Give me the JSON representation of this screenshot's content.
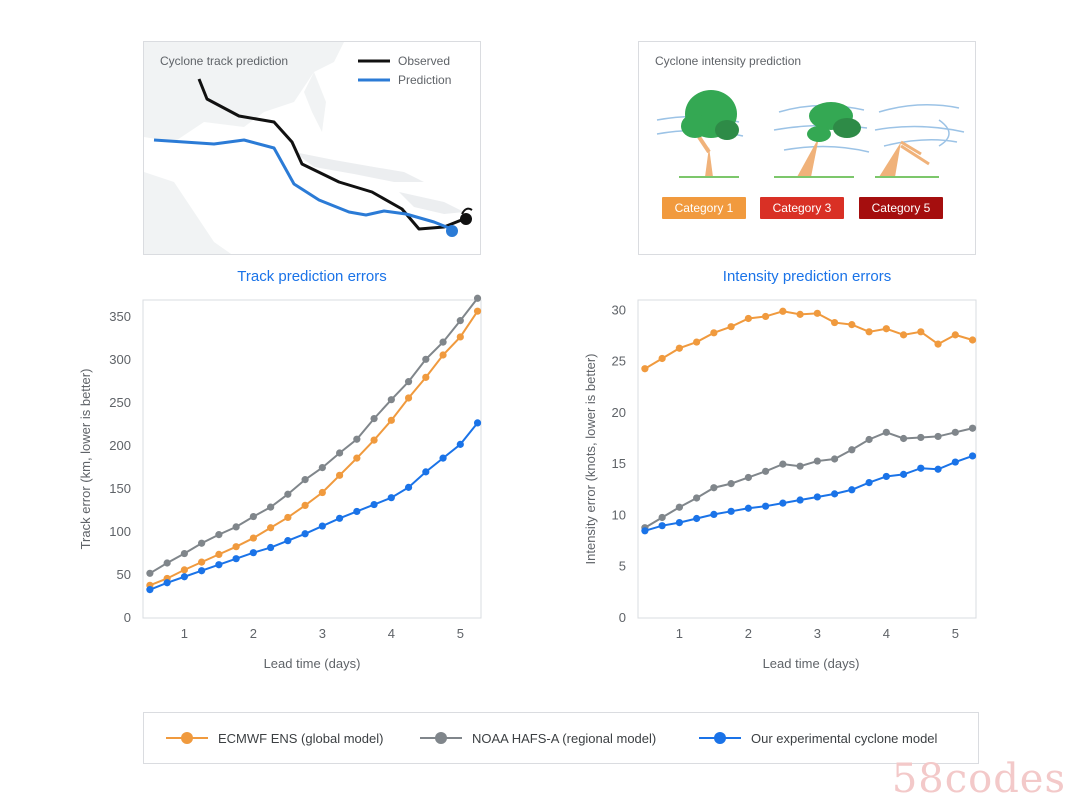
{
  "colors": {
    "ecmwf": "#f09a3e",
    "noaa": "#80868b",
    "ours": "#1a73e8",
    "observed": "#111111",
    "prediction": "#2b7bd6",
    "cat1": "#f19a3e",
    "cat3": "#d93025",
    "cat5": "#a50e0e",
    "title": "#1a73e8"
  },
  "track_panel": {
    "caption": "Cyclone track prediction",
    "legend_observed": "Observed",
    "legend_prediction": "Prediction"
  },
  "intensity_panel": {
    "caption": "Cyclone intensity prediction",
    "categories": [
      "Category 1",
      "Category 3",
      "Category 5"
    ]
  },
  "legend": {
    "items": [
      {
        "label": "ECMWF ENS (global model)"
      },
      {
        "label": "NOAA HAFS-A (regional model)"
      },
      {
        "label": "Our experimental cyclone model"
      }
    ]
  },
  "watermark": "58codes",
  "chart_data": [
    {
      "type": "line",
      "title": "Track prediction errors",
      "xlabel": "Lead time (days)",
      "ylabel": "Track error (km, lower is better)",
      "xlim": [
        0.4,
        5.3
      ],
      "ylim": [
        0,
        370
      ],
      "xticks": [
        1,
        2,
        3,
        4,
        5
      ],
      "yticks": [
        0,
        50,
        100,
        150,
        200,
        250,
        300,
        350
      ],
      "grid": false,
      "x": [
        0.5,
        0.75,
        1.0,
        1.25,
        1.5,
        1.75,
        2.0,
        2.25,
        2.5,
        2.75,
        3.0,
        3.25,
        3.5,
        3.75,
        4.0,
        4.25,
        4.5,
        4.75,
        5.0,
        5.25
      ],
      "series": [
        {
          "name": "ECMWF ENS (global model)",
          "color_key": "ecmwf",
          "values": [
            38,
            46,
            56,
            65,
            74,
            83,
            93,
            105,
            117,
            131,
            146,
            166,
            186,
            207,
            230,
            256,
            280,
            306,
            327,
            357
          ]
        },
        {
          "name": "NOAA HAFS-A (regional model)",
          "color_key": "noaa",
          "values": [
            52,
            64,
            75,
            87,
            97,
            106,
            118,
            129,
            144,
            161,
            175,
            192,
            208,
            232,
            254,
            275,
            301,
            321,
            346,
            372
          ]
        },
        {
          "name": "Our experimental cyclone model",
          "color_key": "ours",
          "values": [
            33,
            41,
            48,
            55,
            62,
            69,
            76,
            82,
            90,
            98,
            107,
            116,
            124,
            132,
            140,
            152,
            170,
            186,
            202,
            227
          ]
        }
      ]
    },
    {
      "type": "line",
      "title": "Intensity prediction errors",
      "xlabel": "Lead time (days)",
      "ylabel": "Intensity error (knots, lower is better)",
      "xlim": [
        0.4,
        5.3
      ],
      "ylim": [
        0,
        31
      ],
      "xticks": [
        1,
        2,
        3,
        4,
        5
      ],
      "yticks": [
        0,
        5,
        10,
        15,
        20,
        25,
        30
      ],
      "grid": false,
      "x": [
        0.5,
        0.75,
        1.0,
        1.25,
        1.5,
        1.75,
        2.0,
        2.25,
        2.5,
        2.75,
        3.0,
        3.25,
        3.5,
        3.75,
        4.0,
        4.25,
        4.5,
        4.75,
        5.0,
        5.25
      ],
      "series": [
        {
          "name": "ECMWF ENS (global model)",
          "color_key": "ecmwf",
          "values": [
            24.3,
            25.3,
            26.3,
            26.9,
            27.8,
            28.4,
            29.2,
            29.4,
            29.9,
            29.6,
            29.7,
            28.8,
            28.6,
            27.9,
            28.2,
            27.6,
            27.9,
            26.7,
            27.6,
            27.1
          ]
        },
        {
          "name": "NOAA HAFS-A (regional model)",
          "color_key": "noaa",
          "values": [
            8.8,
            9.8,
            10.8,
            11.7,
            12.7,
            13.1,
            13.7,
            14.3,
            15.0,
            14.8,
            15.3,
            15.5,
            16.4,
            17.4,
            18.1,
            17.5,
            17.6,
            17.7,
            18.1,
            18.5
          ]
        },
        {
          "name": "Our experimental cyclone model",
          "color_key": "ours",
          "values": [
            8.5,
            9.0,
            9.3,
            9.7,
            10.1,
            10.4,
            10.7,
            10.9,
            11.2,
            11.5,
            11.8,
            12.1,
            12.5,
            13.2,
            13.8,
            14.0,
            14.6,
            14.5,
            15.2,
            15.8
          ]
        }
      ]
    }
  ]
}
